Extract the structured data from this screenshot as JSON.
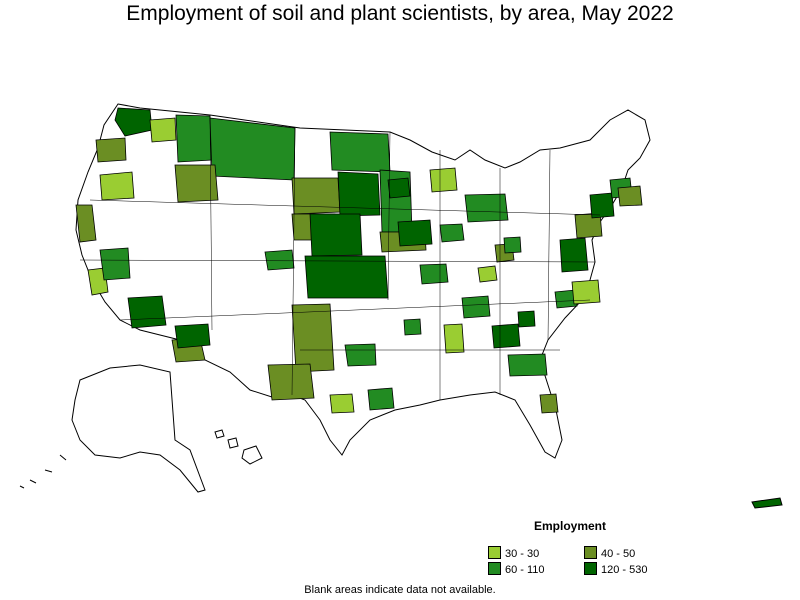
{
  "title": "Employment of soil and plant scientists, by area, May 2022",
  "legend": {
    "title": "Employment",
    "items": [
      {
        "label": "30 - 30",
        "color": "#9acd32"
      },
      {
        "label": "40 - 50",
        "color": "#6b8e23"
      },
      {
        "label": "60 - 110",
        "color": "#228b22"
      },
      {
        "label": "120 - 530",
        "color": "#006400"
      }
    ]
  },
  "note": "Blank areas indicate data not available."
}
